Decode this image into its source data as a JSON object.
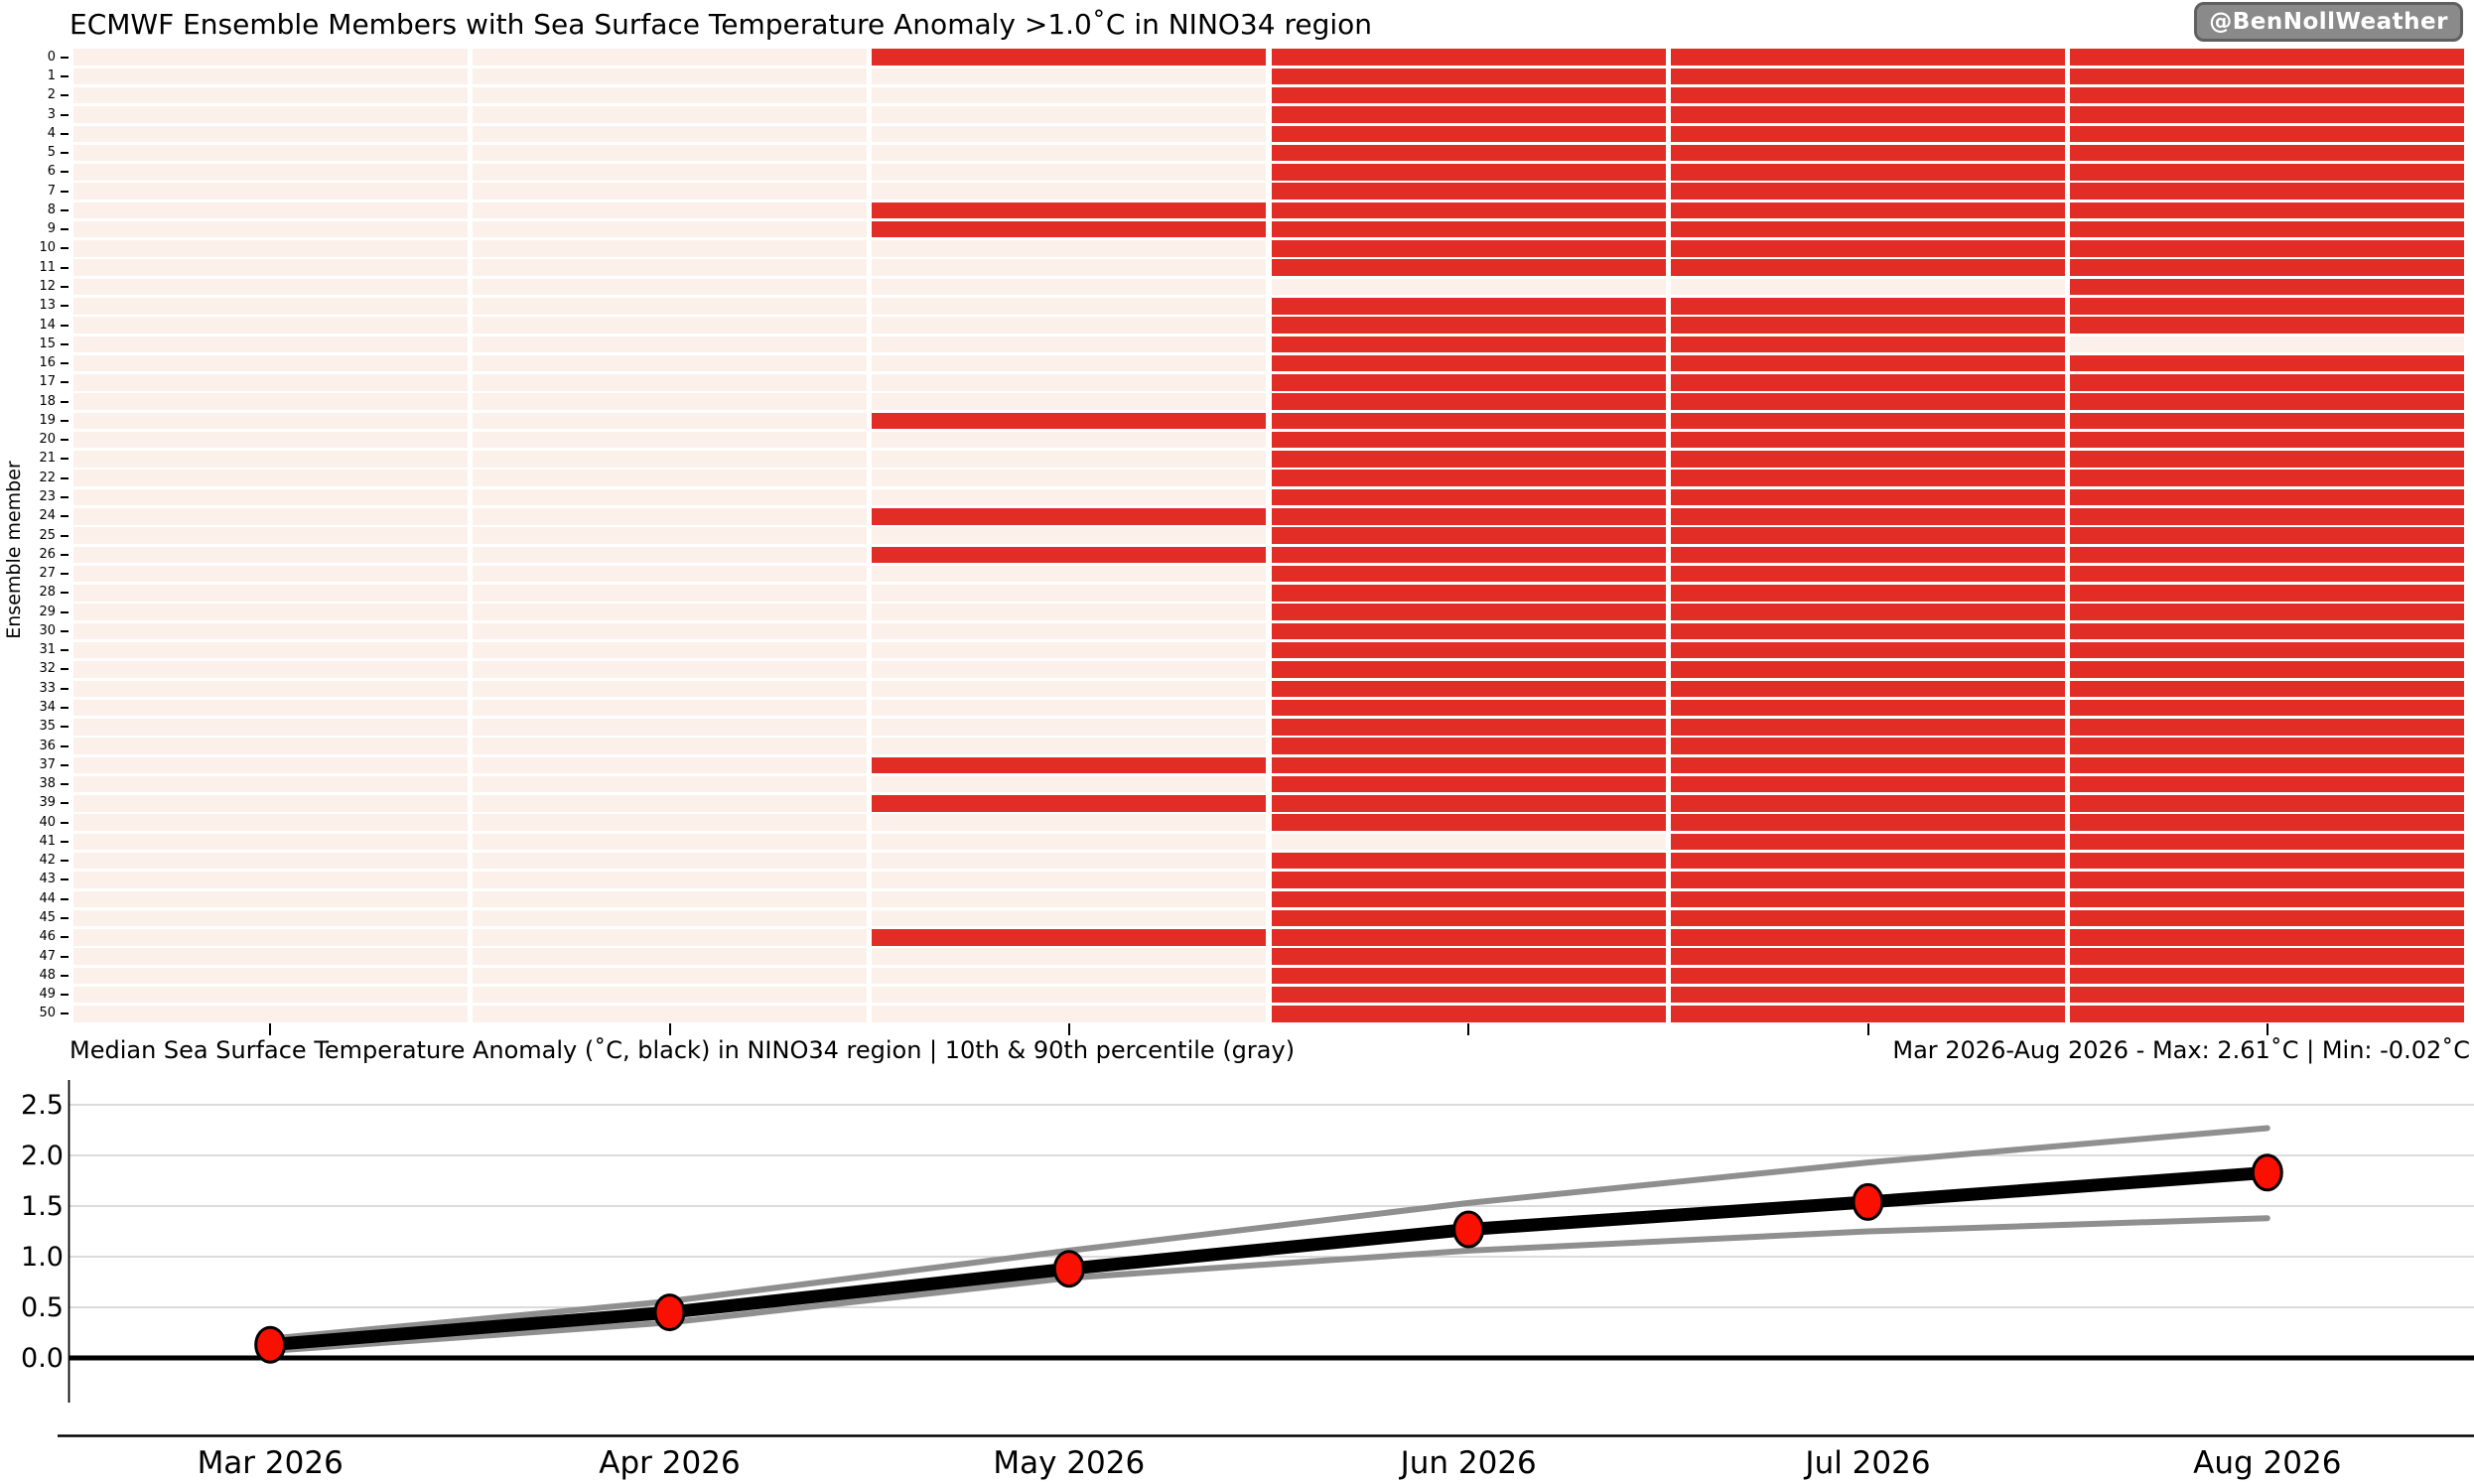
{
  "title": "ECMWF Ensemble Members with Sea Surface Temperature Anomaly >1.0˚C in NINO34 region",
  "badge": "@BenNollWeather",
  "subtitle_left": "Median Sea Surface Temperature Anomaly (˚C, black) in NINO34 region | 10th & 90th percentile (gray)",
  "subtitle_right": "Mar 2026-Aug 2026 - Max: 2.61˚C | Min: -0.02˚C",
  "heatmap": {
    "ylabel": "Ensemble member",
    "row_count": 51,
    "months": [
      "Mar 2026",
      "Apr 2026",
      "May 2026",
      "Jun 2026",
      "Jul 2026",
      "Aug 2026"
    ],
    "red_cells": [
      [
        2,
        3,
        4,
        5
      ],
      [
        3,
        4,
        5
      ],
      [
        3,
        4,
        5
      ],
      [
        3,
        4,
        5
      ],
      [
        3,
        4,
        5
      ],
      [
        3,
        4,
        5
      ],
      [
        3,
        4,
        5
      ],
      [
        3,
        4,
        5
      ],
      [
        2,
        3,
        4,
        5
      ],
      [
        2,
        3,
        4,
        5
      ],
      [
        3,
        4,
        5
      ],
      [
        3,
        4,
        5
      ],
      [
        5
      ],
      [
        3,
        4,
        5
      ],
      [
        3,
        4,
        5
      ],
      [
        3,
        4
      ],
      [
        3,
        4,
        5
      ],
      [
        3,
        4,
        5
      ],
      [
        3,
        4,
        5
      ],
      [
        2,
        3,
        4,
        5
      ],
      [
        3,
        4,
        5
      ],
      [
        3,
        4,
        5
      ],
      [
        3,
        4,
        5
      ],
      [
        3,
        4,
        5
      ],
      [
        2,
        3,
        4,
        5
      ],
      [
        3,
        4,
        5
      ],
      [
        2,
        3,
        4,
        5
      ],
      [
        3,
        4,
        5
      ],
      [
        3,
        4,
        5
      ],
      [
        3,
        4,
        5
      ],
      [
        3,
        4,
        5
      ],
      [
        3,
        4,
        5
      ],
      [
        3,
        4,
        5
      ],
      [
        3,
        4,
        5
      ],
      [
        3,
        4,
        5
      ],
      [
        3,
        4,
        5
      ],
      [
        3,
        4,
        5
      ],
      [
        2,
        3,
        4,
        5
      ],
      [
        3,
        4,
        5
      ],
      [
        2,
        3,
        4,
        5
      ],
      [
        3,
        4,
        5
      ],
      [
        4,
        5
      ],
      [
        3,
        4,
        5
      ],
      [
        3,
        4,
        5
      ],
      [
        3,
        4,
        5
      ],
      [
        3,
        4,
        5
      ],
      [
        2,
        3,
        4,
        5
      ],
      [
        3,
        4,
        5
      ],
      [
        3,
        4,
        5
      ],
      [
        3,
        4,
        5
      ],
      [
        3,
        4,
        5
      ]
    ]
  },
  "chart_data": {
    "type": "line",
    "x": [
      "Mar 2026",
      "Apr 2026",
      "May 2026",
      "Jun 2026",
      "Jul 2026",
      "Aug 2026"
    ],
    "series": [
      {
        "name": "median",
        "values": [
          0.13,
          0.45,
          0.88,
          1.27,
          1.54,
          1.83
        ]
      },
      {
        "name": "p90",
        "values": [
          0.19,
          0.56,
          1.06,
          1.53,
          1.93,
          2.27
        ]
      },
      {
        "name": "p10",
        "values": [
          0.07,
          0.35,
          0.79,
          1.06,
          1.25,
          1.38
        ]
      }
    ],
    "yticks": [
      0.0,
      0.5,
      1.0,
      1.5,
      2.0,
      2.5
    ],
    "ylim": [
      -0.43,
      2.75
    ],
    "grid": true,
    "legend_position": "none",
    "xlabel": "",
    "ylabel": ""
  },
  "colors": {
    "heat_red": "#e22d27",
    "heat_bg": "#fcf1ea",
    "marker_red": "#fa1000",
    "median_line": "#000000",
    "percentile_line": "#8f8f8f",
    "gridline": "#cfcfcf",
    "axis": "#000000",
    "badge_bg": "#8a8a8a",
    "badge_text": "#ffffff"
  }
}
